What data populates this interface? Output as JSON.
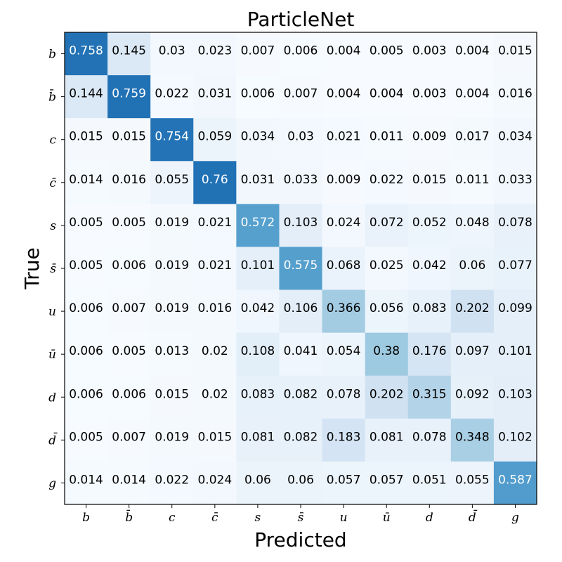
{
  "chart_data": {
    "type": "heatmap",
    "title": "ParticleNet",
    "xlabel": "Predicted",
    "ylabel": "True",
    "x_categories": [
      "b",
      "b̄",
      "c",
      "c̄",
      "s",
      "s̄",
      "u",
      "ū",
      "d",
      "d̄",
      "g"
    ],
    "y_categories": [
      "b",
      "b̄",
      "c",
      "c̄",
      "s",
      "s̄",
      "u",
      "ū",
      "d",
      "d̄",
      "g"
    ],
    "colormap": "Blues",
    "value_range": [
      0,
      1
    ],
    "grid": false,
    "values": [
      [
        "0.758",
        "0.145",
        "0.03",
        "0.023",
        "0.007",
        "0.006",
        "0.004",
        "0.005",
        "0.003",
        "0.004",
        "0.015"
      ],
      [
        "0.144",
        "0.759",
        "0.022",
        "0.031",
        "0.006",
        "0.007",
        "0.004",
        "0.004",
        "0.003",
        "0.004",
        "0.016"
      ],
      [
        "0.015",
        "0.015",
        "0.754",
        "0.059",
        "0.034",
        "0.03",
        "0.021",
        "0.011",
        "0.009",
        "0.017",
        "0.034"
      ],
      [
        "0.014",
        "0.016",
        "0.055",
        "0.76",
        "0.031",
        "0.033",
        "0.009",
        "0.022",
        "0.015",
        "0.011",
        "0.033"
      ],
      [
        "0.005",
        "0.005",
        "0.019",
        "0.021",
        "0.572",
        "0.103",
        "0.024",
        "0.072",
        "0.052",
        "0.048",
        "0.078"
      ],
      [
        "0.005",
        "0.006",
        "0.019",
        "0.021",
        "0.101",
        "0.575",
        "0.068",
        "0.025",
        "0.042",
        "0.06",
        "0.077"
      ],
      [
        "0.006",
        "0.007",
        "0.019",
        "0.016",
        "0.042",
        "0.106",
        "0.366",
        "0.056",
        "0.083",
        "0.202",
        "0.099"
      ],
      [
        "0.006",
        "0.005",
        "0.013",
        "0.02",
        "0.108",
        "0.041",
        "0.054",
        "0.38",
        "0.176",
        "0.097",
        "0.101"
      ],
      [
        "0.006",
        "0.006",
        "0.015",
        "0.02",
        "0.083",
        "0.082",
        "0.078",
        "0.202",
        "0.315",
        "0.092",
        "0.103"
      ],
      [
        "0.005",
        "0.007",
        "0.019",
        "0.015",
        "0.081",
        "0.082",
        "0.183",
        "0.081",
        "0.078",
        "0.348",
        "0.102"
      ],
      [
        "0.014",
        "0.014",
        "0.022",
        "0.024",
        "0.06",
        "0.06",
        "0.057",
        "0.057",
        "0.051",
        "0.055",
        "0.587"
      ]
    ]
  }
}
